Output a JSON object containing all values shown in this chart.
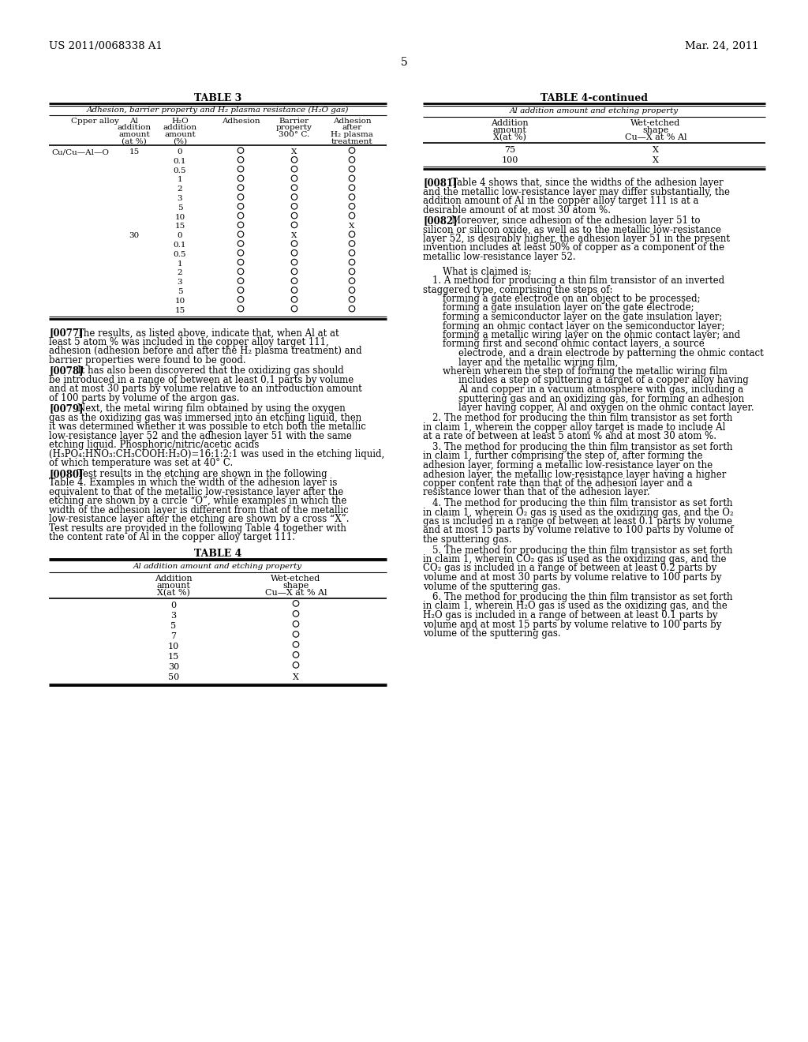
{
  "page_number": "5",
  "patent_number": "US 2011/0068338 A1",
  "patent_date": "Mar. 24, 2011",
  "bg_color": "#ffffff",
  "table3_title": "TABLE 3",
  "table3_subtitle": "Adhesion, barrier property and H₂ plasma resistance (H₂O gas)",
  "table3_col_headers": [
    "Cpper alloy",
    "Al\naddition\namount\n(at %)",
    "H₂O\naddition\namount\n(%)",
    "Adhesion",
    "Barrier\nproperty\n300° C.",
    "Adhesion\nafter\nH₂ plasma\ntreatment"
  ],
  "table3_first_col": "Cu/Cu—Al—O",
  "table3_al_values": [
    "15",
    "",
    "",
    "",
    "",
    "",
    "",
    "",
    "",
    "30",
    "",
    "",
    "",
    "",
    "",
    "",
    "",
    ""
  ],
  "table3_h2o_values": [
    "0",
    "0.1",
    "0.5",
    "1",
    "2",
    "3",
    "5",
    "10",
    "15",
    "0",
    "0.1",
    "0.5",
    "1",
    "2",
    "3",
    "5",
    "10",
    "15"
  ],
  "table3_adhesion": [
    "O",
    "O",
    "O",
    "O",
    "O",
    "O",
    "O",
    "O",
    "O",
    "O",
    "O",
    "O",
    "O",
    "O",
    "O",
    "O",
    "O",
    "O"
  ],
  "table3_barrier": [
    "X",
    "O",
    "O",
    "O",
    "O",
    "O",
    "O",
    "O",
    "O",
    "X",
    "O",
    "O",
    "O",
    "O",
    "O",
    "O",
    "O",
    "O"
  ],
  "table3_after": [
    "O",
    "O",
    "O",
    "O",
    "O",
    "O",
    "O",
    "O",
    "X",
    "O",
    "O",
    "O",
    "O",
    "O",
    "O",
    "O",
    "O",
    "O"
  ],
  "table4c_title": "TABLE 4-continued",
  "table4c_subtitle": "Al addition amount and etching property",
  "table4c_col1_header": "Addition\namount\nX(at %)",
  "table4c_col2_header": "Wet-etched\nshape\nCu—X at % Al",
  "table4c_rows": [
    [
      "75",
      "X"
    ],
    [
      "100",
      "X"
    ]
  ],
  "table4_title": "TABLE 4",
  "table4_subtitle": "Al addition amount and etching property",
  "table4_col1_header": "Addition\namount\nX(at %)",
  "table4_col2_header": "Wet-etched\nshape\nCu—X at % Al",
  "table4_rows": [
    [
      "0",
      "O"
    ],
    [
      "3",
      "O"
    ],
    [
      "5",
      "O"
    ],
    [
      "7",
      "O"
    ],
    [
      "10",
      "O"
    ],
    [
      "15",
      "O"
    ],
    [
      "30",
      "O"
    ],
    [
      "50",
      "X"
    ]
  ],
  "para_0077_tag": "[0077]",
  "para_0077_body": "The results, as listed above, indicate that, when Al at at least 5 atom % was included in the copper alloy target 111, adhesion (adhesion before and after the H₂ plasma treatment) and barrier properties were found to be good.",
  "para_0078_tag": "[0078]",
  "para_0078_body": "It has also been discovered that the oxidizing gas should be introduced in a range of between at least 0.1 parts by volume and at most 30 parts by volume relative to an introduction amount of 100 parts by volume of the argon gas.",
  "para_0079_tag": "[0079]",
  "para_0079_body": "Next, the metal wiring film obtained by using the oxygen gas as the oxidizing gas was immersed into an etching liquid, then it was determined whether it was possible to etch both the metallic low-resistance layer 52 and the adhesion layer 51 with the same etching liquid. Phosphoric/nitric/acetic acids (H₃PO₄:HNO₃:CH₃COOH:H₂O)=16:1:2:1 was used in the etching liquid, of which temperature was set at 40° C.",
  "para_0080_tag": "[0080]",
  "para_0080_body": "Test results in the etching are shown in the following Table 4. Examples in which the width of the adhesion layer is equivalent to that of the metallic low-resistance layer after the etching are shown by a circle “O”, while examples in which the width of the adhesion layer is different from that of the metallic low-resistance layer after the etching are shown by a cross “X”. Test results are provided in the following Table 4 together with the content rate of Al in the copper alloy target 111.",
  "para_0081_tag": "[0081]",
  "para_0081_body": "Table 4 shows that, since the widths of the adhesion layer and the metallic low-resistance layer may differ substantially, the addition amount of Al in the copper alloy target 111 is at a desirable amount of at most 30 atom %.",
  "para_0082_tag": "[0082]",
  "para_0082_body": "Moreover, since adhesion of the adhesion layer 51 to silicon or silicon oxide, as well as to the metallic low-resistance layer 52, is desirably higher, the adhesion layer 51 in the present invention includes at least 50% of copper as a component of the metallic low-resistance layer 52.",
  "claims_header": "What is claimed is:",
  "claim1_intro": "1.  A method for producing a thin film transistor of an inverted staggered type, comprising the steps of:",
  "claim1_steps": [
    "forming a gate electrode on an object to be processed;",
    "forming a gate insulation layer on the gate electrode;",
    "forming a semiconductor layer on the gate insulation layer;",
    "forming an ohmic contact layer on the semiconductor layer;",
    "forming a metallic wiring layer on the ohmic contact layer; and",
    "forming first and second ohmic contact layers, a source electrode, and a drain electrode by patterning the ohmic contact layer and the metallic wiring film,"
  ],
  "claim1_wherein": "wherein the step of forming the metallic wiring film includes a step of sputtering a target of a copper alloy having Al and copper in a vacuum atmosphere with gas, including a sputtering gas and an oxidizing gas, for forming an adhesion layer having copper, Al and oxygen on the ohmic contact layer.",
  "claim2": "2.  The method for producing the thin film transistor as set forth in claim 1, wherein the copper alloy target is made to include Al at a rate of between at least 5 atom % and at most 30 atom %.",
  "claim3": "3.  The method for producing the thin film transistor as set forth in claim 1, further comprising the step of, after forming the adhesion layer, forming a metallic low-resistance layer on the adhesion layer, the metallic low-resistance layer having a higher copper content rate than that of the adhesion layer and a resistance lower than that of the adhesion layer.",
  "claim4": "4.  The method for producing the thin film transistor as set forth in claim 1, wherein O₂ gas is used as the oxidizing gas, and the O₂ gas is included in a range of between at least 0.1 parts by volume and at most 15 parts by volume relative to 100 parts by volume of the sputtering gas.",
  "claim5": "5.  The method for producing the thin film transistor as set forth in claim 1, wherein CO₂ gas is used as the oxidizing gas, and the CO₂ gas is included in a range of between at least 0.2 parts by volume and at most 30 parts by volume relative to 100 parts by volume of the sputtering gas.",
  "claim6": "6.  The method for producing the thin film transistor as set forth in claim 1, wherein H₂O gas is used as the oxidizing gas, and the H₂O gas is included in a range of between at least 0.1 parts by volume and at most 15 parts by volume relative to 100 parts by volume of the sputtering gas."
}
